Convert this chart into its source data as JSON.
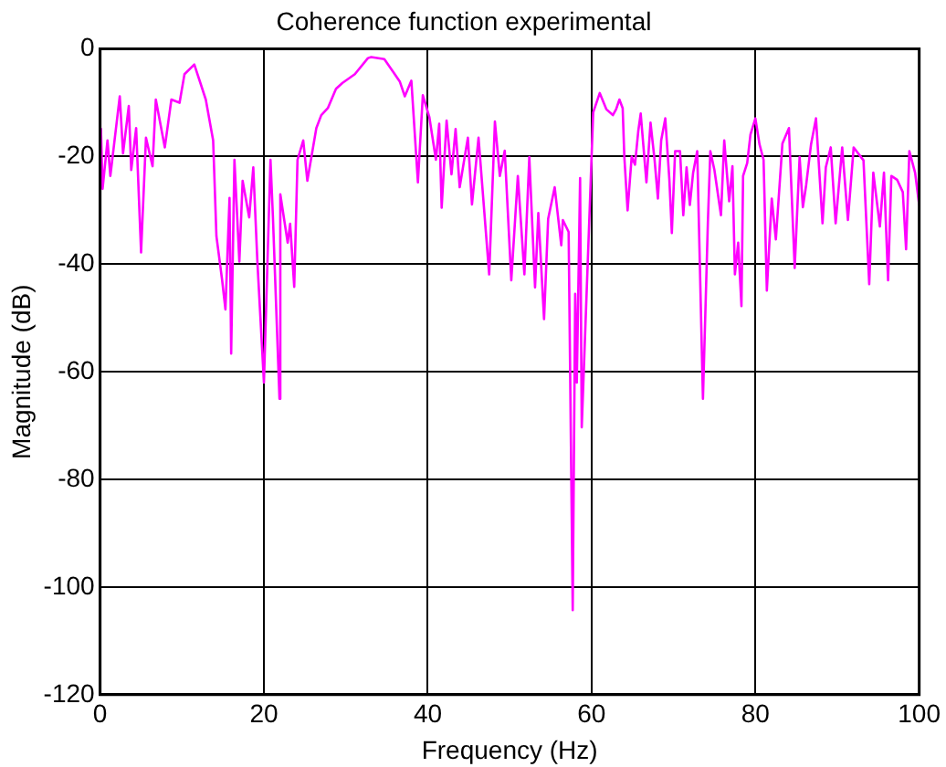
{
  "chart_data": {
    "type": "line",
    "title": "Coherence function experimental",
    "xlabel": "Frequency (Hz)",
    "ylabel": "Magnitude (dB)",
    "xlim": [
      0,
      100
    ],
    "xticks": [
      0,
      20,
      40,
      60,
      80,
      100
    ],
    "ylim": [
      -120,
      0
    ],
    "yticks": [
      -120,
      -100,
      -80,
      -60,
      -40,
      -20,
      0
    ],
    "grid": true,
    "legend": false,
    "series": [
      {
        "color": "#ff00ff",
        "x": [
          0.1,
          0.3,
          0.9,
          1.25,
          2.4,
          2.8,
          3.5,
          3.8,
          4.4,
          5,
          5.6,
          6.4,
          6.8,
          7.9,
          8.7,
          9.7,
          10.3,
          11.5,
          12.3,
          12.9,
          13.8,
          14.2,
          14.9,
          15.3,
          15.8,
          16,
          16.4,
          17,
          17.4,
          18.2,
          18.7,
          19.2,
          20,
          20.8,
          21.1,
          21.9,
          22,
          22.9,
          23.2,
          23.7,
          24.1,
          24.8,
          25.3,
          26.4,
          27,
          27.8,
          28.8,
          29.6,
          31.1,
          32.7,
          33.1,
          34.7,
          35.8,
          36.6,
          37.2,
          38,
          38.8,
          39.4,
          40.2,
          41,
          41.4,
          41.7,
          42.3,
          42.9,
          43.4,
          43.9,
          44.9,
          45.4,
          46.2,
          47.5,
          48.2,
          48.8,
          49.4,
          50.2,
          51,
          51.8,
          52.4,
          53.1,
          53.5,
          54.2,
          54.7,
          55.5,
          56.3,
          56.5,
          57.2,
          57.7,
          58,
          58.2,
          58.6,
          58.8,
          60.2,
          61,
          61.8,
          62.6,
          63,
          63.4,
          63.8,
          64,
          64.4,
          64.9,
          65.3,
          65.7,
          66,
          66.7,
          67.2,
          67.7,
          68.1,
          68.5,
          69,
          69.5,
          69.8,
          70.2,
          70.8,
          71.2,
          71.6,
          72,
          72.4,
          72.9,
          73.6,
          74.2,
          74.5,
          75,
          75.8,
          76.2,
          76.8,
          77.2,
          77.5,
          77.9,
          78.3,
          78.5,
          79,
          79.4,
          80,
          80.5,
          81,
          81.4,
          82,
          82.5,
          83.3,
          84.1,
          84.8,
          85.4,
          85.8,
          86.2,
          86.8,
          87.4,
          88.2,
          88.6,
          89.2,
          89.8,
          90.6,
          91.3,
          92,
          93.2,
          93.9,
          94.4,
          95.2,
          95.7,
          96.2,
          96.6,
          97.3,
          98,
          98.4,
          98.8,
          99.5,
          100
        ],
        "values": [
          -14.7,
          -26,
          -17,
          -23.6,
          -8.8,
          -19.4,
          -10.6,
          -22.5,
          -14.7,
          -37.8,
          -16.5,
          -21.8,
          -9.4,
          -18.3,
          -9.4,
          -10,
          -4.7,
          -2.9,
          -6.6,
          -9.4,
          -17,
          -34.8,
          -43,
          -48.4,
          -27.7,
          -56.6,
          -20.6,
          -39.5,
          -24.5,
          -31.3,
          -22,
          -39.5,
          -62,
          -20.6,
          -31.3,
          -65,
          -27,
          -36,
          -32.5,
          -44.2,
          -20.6,
          -17,
          -24.5,
          -14.7,
          -12.3,
          -11,
          -7.4,
          -6.3,
          -4.7,
          -1.7,
          -1.5,
          -1.9,
          -4.3,
          -6.1,
          -8.8,
          -5.9,
          -24.8,
          -8.6,
          -12.7,
          -20.6,
          -13.9,
          -29.5,
          -13.3,
          -23.3,
          -14.9,
          -25.7,
          -16.5,
          -28.9,
          -16.5,
          -41.9,
          -13.5,
          -23.6,
          -18.9,
          -43,
          -23.6,
          -41.9,
          -20.1,
          -44.3,
          -30.5,
          -50.2,
          -31.6,
          -25.7,
          -36.5,
          -31.8,
          -34,
          -104.3,
          -45.5,
          -62,
          -24,
          -70.3,
          -11.8,
          -8.2,
          -11.2,
          -12.3,
          -11.2,
          -9.4,
          -11,
          -20,
          -30,
          -20,
          -21.5,
          -15.3,
          -12,
          -24.8,
          -13.7,
          -20.7,
          -27.8,
          -17,
          -12.9,
          -24.3,
          -34.2,
          -19,
          -19,
          -30.9,
          -22,
          -29,
          -23,
          -19,
          -65,
          -32.3,
          -19,
          -22.5,
          -30.9,
          -17,
          -28.3,
          -21.8,
          -41.9,
          -36,
          -47.8,
          -23.6,
          -21.2,
          -15.9,
          -12.9,
          -17.7,
          -20.6,
          -44.9,
          -27.8,
          -35.4,
          -17.6,
          -14.7,
          -40.7,
          -20.1,
          -29.4,
          -25.3,
          -17.7,
          -12.9,
          -32.4,
          -22,
          -18.3,
          -32.4,
          -18.3,
          -31.8,
          -18.3,
          -20.7,
          -43.7,
          -23,
          -33,
          -23,
          -43,
          -23.6,
          -24.3,
          -26.6,
          -37.2,
          -19,
          -23,
          -29
        ]
      }
    ]
  }
}
